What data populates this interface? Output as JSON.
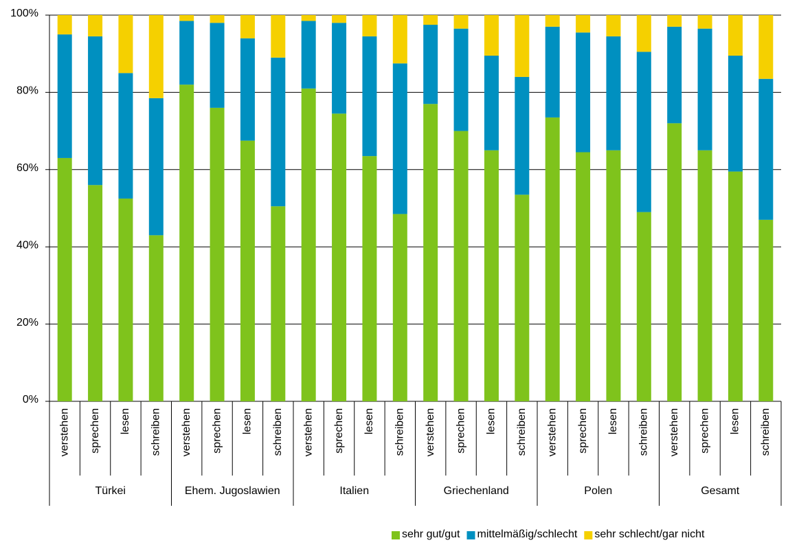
{
  "chart_data": {
    "type": "stacked-bar",
    "categories": [
      "verstehen",
      "sprechen",
      "lesen",
      "schreiben",
      "verstehen",
      "sprechen",
      "lesen",
      "schreiben",
      "verstehen",
      "sprechen",
      "lesen",
      "schreiben",
      "verstehen",
      "sprechen",
      "lesen",
      "schreiben",
      "verstehen",
      "sprechen",
      "lesen",
      "schreiben",
      "verstehen",
      "sprechen",
      "lesen",
      "schreiben"
    ],
    "groups": [
      "Türkei",
      "Ehem. Jugoslawien",
      "Italien",
      "Griechenland",
      "Polen",
      "Gesamt"
    ],
    "series": [
      {
        "name": "sehr gut/gut",
        "color": "#7fc31c",
        "values": [
          63,
          56,
          52.5,
          43,
          82,
          76,
          67.5,
          50.5,
          81,
          74.5,
          63.5,
          48.5,
          77,
          70,
          65,
          53.5,
          73.5,
          64.5,
          65,
          49,
          72,
          65,
          59.5,
          47
        ]
      },
      {
        "name": "mittelmäßig/schlecht",
        "color": "#0090c0",
        "values": [
          32,
          38.5,
          32.5,
          35.5,
          16.5,
          22,
          26.5,
          38.5,
          17.5,
          23.5,
          31,
          39,
          20.5,
          26.5,
          24.5,
          30.5,
          23.5,
          31,
          29.5,
          41.5,
          25,
          31.5,
          30,
          36.5
        ]
      },
      {
        "name": "sehr schlecht/gar nicht",
        "color": "#f5d000",
        "values": [
          5,
          5.5,
          15,
          21.5,
          1.5,
          2,
          6,
          11,
          1.5,
          2,
          5.5,
          12.5,
          2.5,
          3.5,
          10.5,
          16,
          3,
          4.5,
          5.5,
          9.5,
          3,
          3.5,
          10.5,
          16.5
        ]
      }
    ],
    "ylim": [
      0,
      100
    ],
    "yticks": [
      {
        "value": 0,
        "label": "0%"
      },
      {
        "value": 20,
        "label": "20%"
      },
      {
        "value": 40,
        "label": "40%"
      },
      {
        "value": 60,
        "label": "60%"
      },
      {
        "value": 80,
        "label": "80%"
      },
      {
        "value": 100,
        "label": "100%"
      }
    ],
    "grid": true
  }
}
